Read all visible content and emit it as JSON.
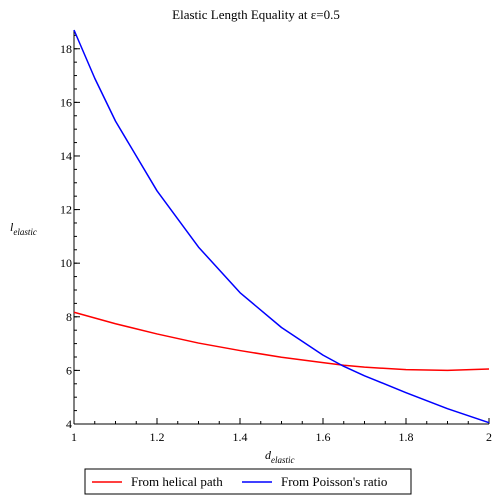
{
  "chart_data": {
    "type": "line",
    "title": "Elastic Length Equality at ε=0.5",
    "xlabel": {
      "base": "d",
      "sub": "elastic"
    },
    "ylabel": {
      "base": "l",
      "sub": "elastic"
    },
    "xlim": [
      1,
      2
    ],
    "ylim": [
      4,
      18.7
    ],
    "x_ticks": [
      1,
      1.2,
      1.4,
      1.6,
      1.8,
      2
    ],
    "x_tick_labels": [
      "1",
      "1.2",
      "1.4",
      "1.6",
      "1.8",
      "2"
    ],
    "y_ticks": [
      4,
      6,
      8,
      10,
      12,
      14,
      16,
      18
    ],
    "y_tick_labels": [
      "4",
      "6",
      "8",
      "10",
      "12",
      "14",
      "16",
      "18"
    ],
    "grid": false,
    "legend_position": "bottom",
    "series": [
      {
        "name": "From helical path",
        "color": "#ff0000",
        "x": [
          1,
          1.1,
          1.2,
          1.3,
          1.4,
          1.5,
          1.6,
          1.65,
          1.7,
          1.8,
          1.9,
          2
        ],
        "y": [
          8.17,
          7.74,
          7.36,
          7.02,
          6.74,
          6.49,
          6.29,
          6.19,
          6.12,
          6.03,
          6.0,
          6.05
        ]
      },
      {
        "name": "From Poisson's ratio",
        "color": "#0000ff",
        "x": [
          1,
          1.05,
          1.1,
          1.2,
          1.3,
          1.4,
          1.5,
          1.6,
          1.65,
          1.7,
          1.8,
          1.9,
          2
        ],
        "y": [
          18.7,
          16.9,
          15.3,
          12.7,
          10.6,
          8.9,
          7.6,
          6.57,
          6.15,
          5.8,
          5.17,
          4.57,
          4.05
        ]
      }
    ]
  }
}
